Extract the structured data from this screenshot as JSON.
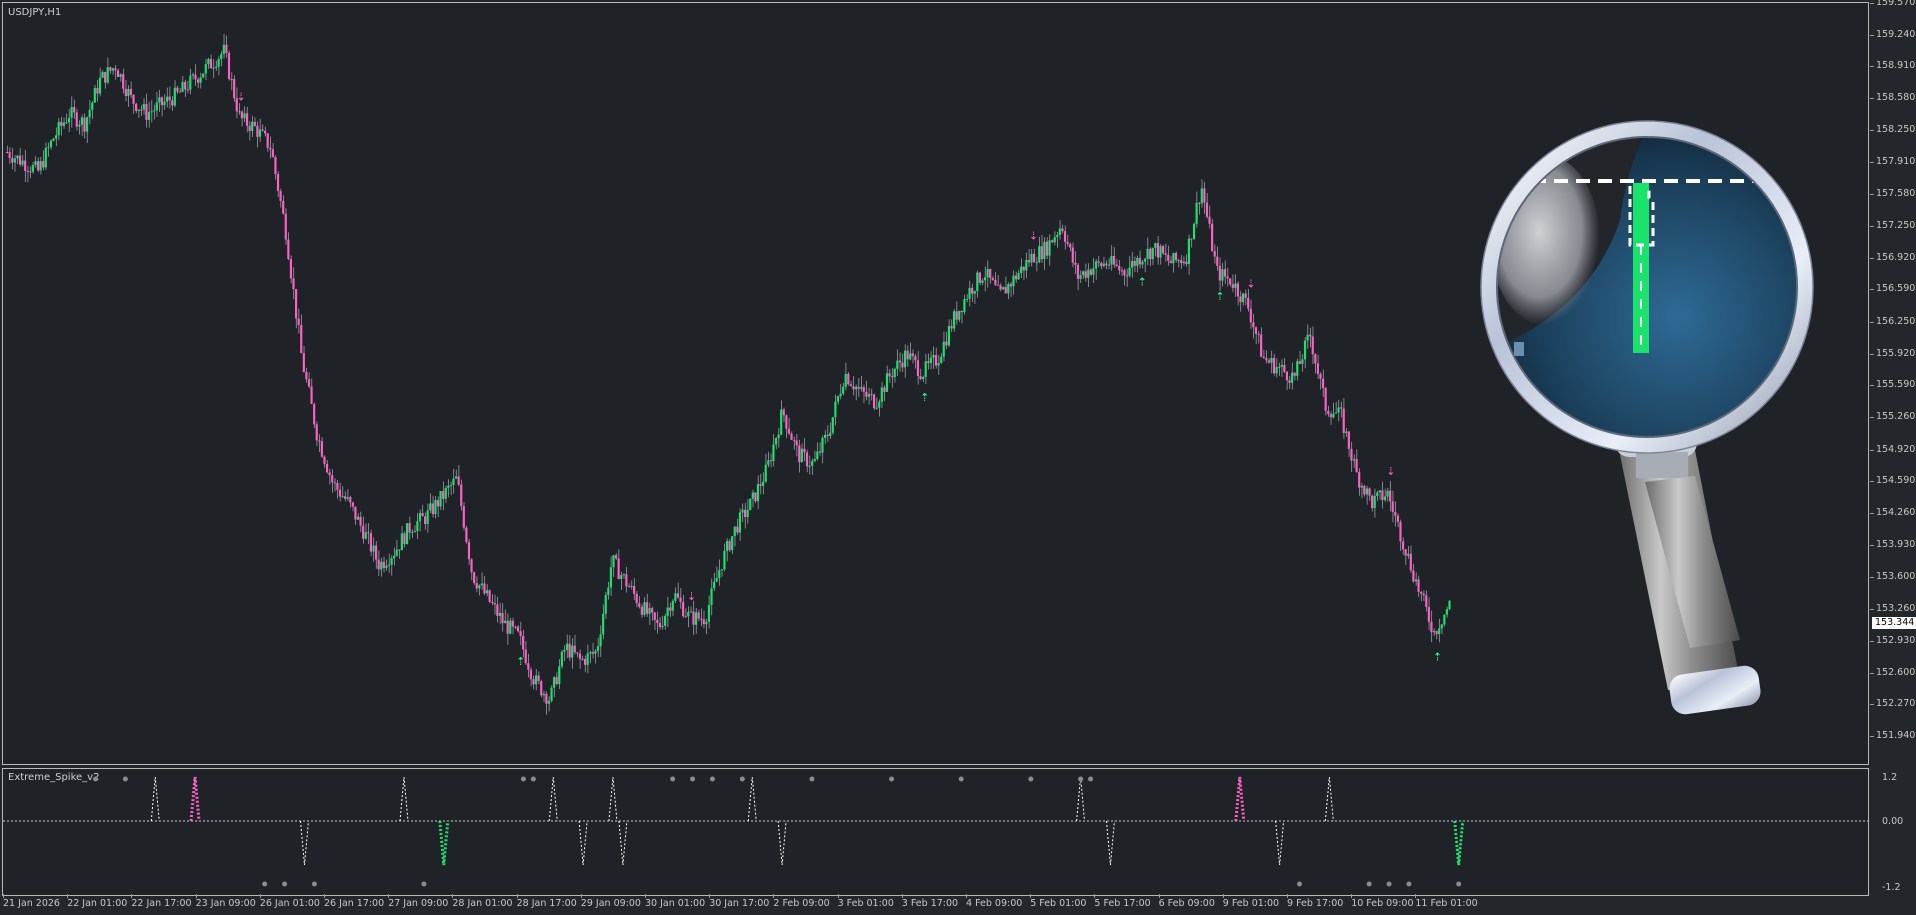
{
  "chart": {
    "symbol_label": "USDJPY,H1",
    "current_price": "153.344",
    "colors": {
      "bull": "#19e36b",
      "bear": "#ff5fc8",
      "arrow_up": "#33ff99",
      "arrow_down": "#ff66cc",
      "background": "#1f2226",
      "grid_frame": "#b8b8b8",
      "text": "#c8c8c8"
    },
    "price_labels": [
      "159.570",
      "159.240",
      "158.910",
      "158.580",
      "158.250",
      "157.910",
      "157.580",
      "157.250",
      "156.920",
      "156.590",
      "156.250",
      "155.920",
      "155.590",
      "155.260",
      "154.920",
      "154.590",
      "154.260",
      "153.930",
      "153.600",
      "153.260",
      "152.930",
      "152.600",
      "152.270",
      "151.940"
    ],
    "time_labels": [
      "21 Jan 2026",
      "22 Jan 01:00",
      "22 Jan 17:00",
      "23 Jan 09:00",
      "26 Jan 01:00",
      "26 Jan 17:00",
      "27 Jan 09:00",
      "28 Jan 01:00",
      "28 Jan 17:00",
      "29 Jan 09:00",
      "30 Jan 01:00",
      "30 Jan 17:00",
      "2 Feb 09:00",
      "3 Feb 01:00",
      "3 Feb 17:00",
      "4 Feb 09:00",
      "5 Feb 01:00",
      "5 Feb 17:00",
      "6 Feb 09:00",
      "9 Feb 01:00",
      "9 Feb 17:00",
      "10 Feb 09:00",
      "11 Feb 01:00"
    ],
    "path_prices": [
      158.05,
      157.95,
      157.85,
      158.2,
      158.45,
      158.35,
      158.8,
      158.95,
      158.6,
      158.45,
      158.55,
      158.65,
      158.8,
      158.95,
      159.1,
      158.4,
      158.3,
      158.1,
      157.2,
      155.9,
      155.1,
      154.6,
      154.4,
      154.1,
      153.75,
      153.9,
      154.15,
      154.25,
      154.45,
      154.65,
      153.65,
      153.4,
      153.15,
      153.0,
      152.55,
      152.35,
      152.9,
      152.75,
      152.85,
      153.8,
      153.55,
      153.3,
      153.1,
      153.45,
      153.2,
      153.2,
      153.75,
      154.15,
      154.4,
      154.75,
      155.35,
      154.9,
      154.8,
      155.15,
      155.75,
      155.55,
      155.45,
      155.75,
      155.95,
      155.75,
      155.9,
      156.3,
      156.6,
      156.8,
      156.55,
      156.75,
      156.95,
      157.05,
      157.3,
      156.75,
      156.85,
      156.9,
      156.8,
      156.95,
      157.05,
      156.9,
      156.95,
      157.7,
      156.8,
      156.7,
      156.45,
      155.9,
      155.8,
      155.7,
      156.15,
      155.4,
      155.3,
      154.7,
      154.4,
      154.5,
      154.0,
      153.5,
      153.05,
      153.34
    ],
    "arrow_signals": [
      {
        "dir": "down",
        "i": 15
      },
      {
        "dir": "up",
        "i": 33
      },
      {
        "dir": "down",
        "i": 44
      },
      {
        "dir": "up",
        "i": 59
      },
      {
        "dir": "down",
        "i": 66
      },
      {
        "dir": "up",
        "i": 73
      },
      {
        "dir": "up",
        "i": 78
      },
      {
        "dir": "down",
        "i": 80
      },
      {
        "dir": "down",
        "i": 89
      },
      {
        "dir": "up",
        "i": 92
      }
    ]
  },
  "indicator": {
    "name": "Extreme_Spike_v2",
    "levels": [
      "1.2",
      "0.00",
      "-1.2"
    ],
    "up_spikes": [
      15,
      40,
      55,
      61,
      75,
      108,
      133
    ],
    "down_spikes": [
      30,
      58,
      62,
      78,
      111,
      128,
      146
    ],
    "bull_spikes": [
      44,
      146
    ],
    "bear_spikes": [
      19,
      124
    ],
    "top_dots": [
      9,
      12,
      52,
      53,
      67,
      69,
      71,
      74,
      81,
      89,
      96,
      103,
      108,
      109
    ],
    "bottom_dots": [
      26,
      28,
      31,
      42,
      130,
      137,
      139,
      141,
      146
    ]
  }
}
